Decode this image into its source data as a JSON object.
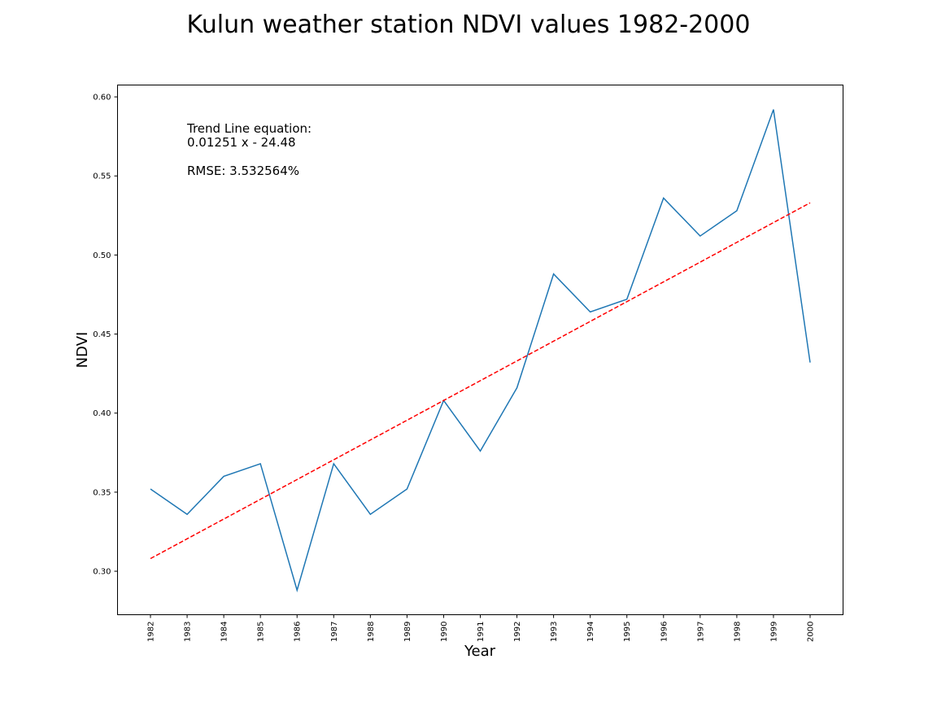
{
  "chart_data": {
    "type": "line",
    "title": "Kulun weather station NDVI values 1982-2000",
    "xlabel": "Year",
    "ylabel": "NDVI",
    "x": [
      1982,
      1983,
      1984,
      1985,
      1986,
      1987,
      1988,
      1989,
      1990,
      1991,
      1992,
      1993,
      1994,
      1995,
      1996,
      1997,
      1998,
      1999,
      2000
    ],
    "x_tick_labels": [
      "1982",
      "1983",
      "1984",
      "1985",
      "1986",
      "1987",
      "1988",
      "1989",
      "1990",
      "1991",
      "1992",
      "1993",
      "1994",
      "1995",
      "1996",
      "1997",
      "1998",
      "1999",
      "2000"
    ],
    "y_ticks": [
      0.3,
      0.35,
      0.4,
      0.45,
      0.5,
      0.55,
      0.6
    ],
    "y_tick_labels": [
      "0.30",
      "0.35",
      "0.40",
      "0.45",
      "0.50",
      "0.55",
      "0.60"
    ],
    "ylim": [
      0.2725,
      0.6075
    ],
    "grid": false,
    "series": [
      {
        "color": "#1f77b4",
        "style": "solid",
        "values": [
          0.352,
          0.336,
          0.36,
          0.368,
          0.288,
          0.368,
          0.336,
          0.352,
          0.408,
          0.376,
          0.416,
          0.488,
          0.464,
          0.472,
          0.536,
          0.512,
          0.528,
          0.592,
          0.432
        ]
      },
      {
        "color": "#ff0000",
        "style": "dashed",
        "values": [
          0.308,
          0.3205,
          0.333,
          0.3455,
          0.358,
          0.3705,
          0.383,
          0.3955,
          0.408,
          0.4205,
          0.433,
          0.4455,
          0.458,
          0.4705,
          0.483,
          0.4955,
          0.508,
          0.5205,
          0.533
        ]
      }
    ],
    "annotations": {
      "trend_heading": "Trend Line equation:",
      "trend_equation": "0.01251 x - 24.48",
      "rmse": "RMSE: 3.532564%"
    }
  }
}
